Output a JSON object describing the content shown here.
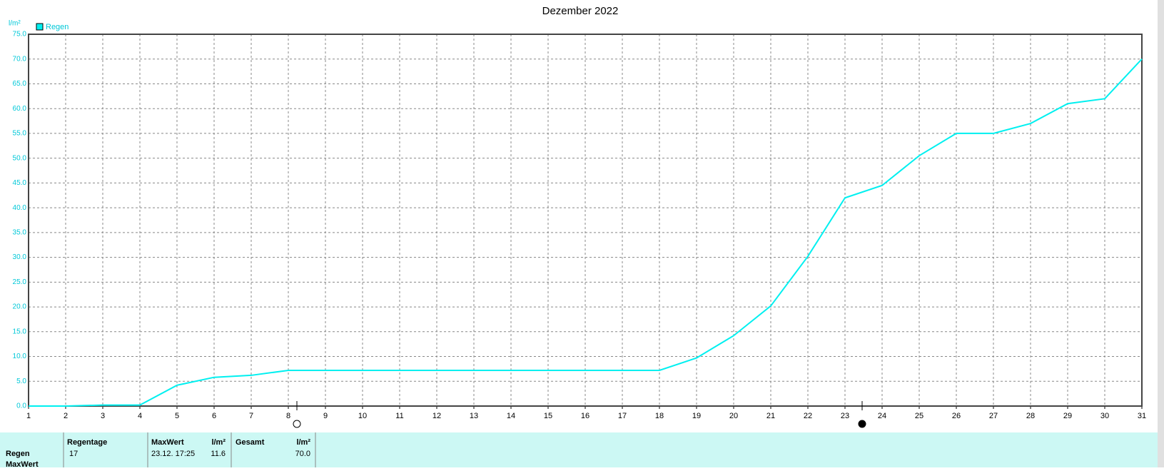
{
  "chart_data": {
    "type": "line",
    "title": "Dezember 2022",
    "ylabel": "l/m²",
    "x": [
      1,
      2,
      3,
      4,
      5,
      6,
      7,
      8,
      9,
      10,
      11,
      12,
      13,
      14,
      15,
      16,
      17,
      18,
      19,
      20,
      21,
      22,
      23,
      24,
      25,
      26,
      27,
      28,
      29,
      30,
      31
    ],
    "series": [
      {
        "name": "Regen",
        "color": "#00f0f0",
        "values": [
          0,
          0,
          0.2,
          0.2,
          4.2,
          5.8,
          6.2,
          7.2,
          7.2,
          7.2,
          7.2,
          7.2,
          7.2,
          7.2,
          7.2,
          7.2,
          7.2,
          7.2,
          9.7,
          14.2,
          20.2,
          30.2,
          42,
          44.5,
          50.5,
          55,
          55,
          57,
          61,
          62,
          70
        ]
      }
    ],
    "xlim": [
      1,
      31
    ],
    "ylim": [
      0,
      75
    ],
    "xticks": [
      1,
      2,
      3,
      4,
      5,
      6,
      7,
      8,
      9,
      10,
      11,
      12,
      13,
      14,
      15,
      16,
      17,
      18,
      19,
      20,
      21,
      22,
      23,
      24,
      25,
      26,
      27,
      28,
      29,
      30,
      31
    ],
    "yticks": [
      {
        "value": 0,
        "label": "0.0"
      },
      {
        "value": 5,
        "label": "5.0"
      },
      {
        "value": 10,
        "label": "10.0"
      },
      {
        "value": 15,
        "label": "15.0"
      },
      {
        "value": 20,
        "label": "20.0"
      },
      {
        "value": 25,
        "label": "25.0"
      },
      {
        "value": 30,
        "label": "30.0"
      },
      {
        "value": 35,
        "label": "35.0"
      },
      {
        "value": 40,
        "label": "40.0"
      },
      {
        "value": 45,
        "label": "45.0"
      },
      {
        "value": 50,
        "label": "50.0"
      },
      {
        "value": 55,
        "label": "55.0"
      },
      {
        "value": 60,
        "label": "60.0"
      },
      {
        "value": 65,
        "label": "65.0"
      },
      {
        "value": 70,
        "label": "70.0"
      },
      {
        "value": 75,
        "label": "75.0"
      }
    ],
    "grid": true
  },
  "table": {
    "columns": [
      "Regentage",
      "MaxWert",
      "l/m²",
      "Gesamt",
      "l/m²"
    ],
    "rows": [
      [
        "Regen",
        "17",
        "23.12.  17:25",
        "11.6",
        "70.0"
      ],
      [
        "MaxWert"
      ]
    ]
  }
}
